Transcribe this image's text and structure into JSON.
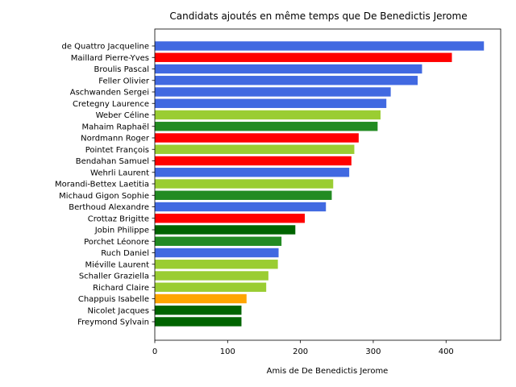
{
  "chart_data": {
    "type": "bar",
    "orientation": "horizontal",
    "title": "Candidats ajoutés en même temps que De Benedictis Jerome",
    "xlabel": "Amis de De Benedictis Jerome",
    "ylabel": "",
    "xlim": [
      0,
      475
    ],
    "xticks": [
      0,
      100,
      200,
      300,
      400
    ],
    "grid": false,
    "categories": [
      "de Quattro Jacqueline",
      "Maillard Pierre-Yves",
      "Broulis Pascal",
      "Feller Olivier",
      "Aschwanden Sergei",
      "Cretegny Laurence",
      "Weber Céline",
      "Mahaim Raphaël",
      "Nordmann Roger",
      "Pointet François",
      "Bendahan Samuel",
      "Wehrli Laurent",
      "Morandi-Bettex Laetitia",
      "Michaud Gigon Sophie",
      "Berthoud Alexandre",
      "Crottaz Brigitte",
      "Jobin Philippe",
      "Porchet Léonore",
      "Ruch Daniel",
      "Miéville Laurent",
      "Schaller Graziella",
      "Richard Claire",
      "Chappuis Isabelle",
      "Nicolet Jacques",
      "Freymond Sylvain"
    ],
    "values": [
      452,
      408,
      367,
      361,
      324,
      318,
      310,
      306,
      280,
      274,
      270,
      267,
      245,
      243,
      235,
      206,
      193,
      174,
      170,
      169,
      156,
      153,
      126,
      119,
      119
    ],
    "colors": [
      "#4169e1",
      "#ff0000",
      "#4169e1",
      "#4169e1",
      "#4169e1",
      "#4169e1",
      "#9acd32",
      "#228b22",
      "#ff0000",
      "#9acd32",
      "#ff0000",
      "#4169e1",
      "#9acd32",
      "#228b22",
      "#4169e1",
      "#ff0000",
      "#006400",
      "#228b22",
      "#4169e1",
      "#9acd32",
      "#9acd32",
      "#9acd32",
      "#ffa500",
      "#006400",
      "#006400"
    ]
  }
}
